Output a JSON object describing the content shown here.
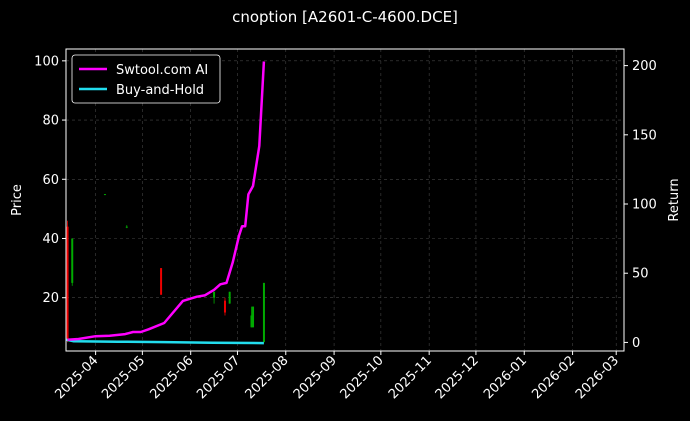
{
  "chart_data": {
    "type": "line",
    "title": "cnoption [A2601-C-4600.DCE]",
    "ylabel": "Price",
    "y2label": "Return",
    "ylim": [
      2,
      104
    ],
    "y2lim": [
      -6.2,
      212
    ],
    "xlim": [
      "2025-03-13",
      "2026-03-06"
    ],
    "grid": true,
    "legend_position": "top-left",
    "x_ticks": [
      "2025-04",
      "2025-05",
      "2025-06",
      "2025-07",
      "2025-08",
      "2025-09",
      "2025-10",
      "2025-11",
      "2025-12",
      "2026-01",
      "2026-02",
      "2026-03"
    ],
    "y_ticks": [
      20,
      40,
      60,
      80,
      100
    ],
    "y2_ticks": [
      0,
      50,
      100,
      150,
      200
    ],
    "series": [
      {
        "name": "Swtool.com AI",
        "color": "#ff00ff",
        "axis": "right",
        "x": [
          "2025-03-14",
          "2025-03-21",
          "2025-04-01",
          "2025-04-10",
          "2025-04-20",
          "2025-04-25",
          "2025-04-30",
          "2025-05-05",
          "2025-05-15",
          "2025-05-27",
          "2025-06-05",
          "2025-06-10",
          "2025-06-16",
          "2025-06-20",
          "2025-06-24",
          "2025-06-28",
          "2025-07-02",
          "2025-07-04",
          "2025-07-06",
          "2025-07-08",
          "2025-07-09",
          "2025-07-11",
          "2025-07-15",
          "2025-07-17",
          "2025-07-18"
        ],
        "y": [
          2,
          2.5,
          4.5,
          4.8,
          6,
          7.5,
          7.5,
          9.5,
          14,
          30,
          33,
          34,
          38,
          42,
          43,
          58,
          77,
          84,
          84,
          107,
          109,
          113,
          142,
          183,
          203
        ]
      },
      {
        "name": "Buy-and-Hold",
        "color": "#22ddee",
        "axis": "right",
        "x": [
          "2025-03-13",
          "2025-03-18",
          "2025-04-15",
          "2025-05-15",
          "2025-06-15",
          "2025-07-18"
        ],
        "y": [
          2,
          0.8,
          0.5,
          0.2,
          -0.2,
          -0.5
        ]
      }
    ],
    "candles": [
      {
        "x": "2025-03-14",
        "open": 44,
        "close": 6,
        "high": 46,
        "low": 5
      },
      {
        "x": "2025-03-17",
        "open": 25,
        "close": 40,
        "high": 40,
        "low": 24
      },
      {
        "x": "2025-04-07",
        "open": 55,
        "close": 55,
        "high": 55,
        "low": 55
      },
      {
        "x": "2025-04-21",
        "open": 44,
        "close": 44,
        "high": 44.5,
        "low": 43.5
      },
      {
        "x": "2025-05-13",
        "open": 30,
        "close": 21,
        "high": 30,
        "low": 21
      },
      {
        "x": "2025-06-16",
        "open": 20,
        "close": 22,
        "high": 22,
        "low": 18
      },
      {
        "x": "2025-06-23",
        "open": 19,
        "close": 15,
        "high": 20,
        "low": 14
      },
      {
        "x": "2025-06-26",
        "open": 18,
        "close": 22,
        "high": 22,
        "low": 18
      },
      {
        "x": "2025-07-10",
        "open": 10,
        "close": 14,
        "high": 17,
        "low": 10
      },
      {
        "x": "2025-07-11",
        "open": 10,
        "close": 17,
        "high": 17,
        "low": 10
      },
      {
        "x": "2025-07-18",
        "open": 5,
        "close": 25,
        "high": 25,
        "low": 5
      }
    ],
    "up_color": "#00aa00",
    "down_color": "#ee0000",
    "grid_color": "#444444"
  }
}
